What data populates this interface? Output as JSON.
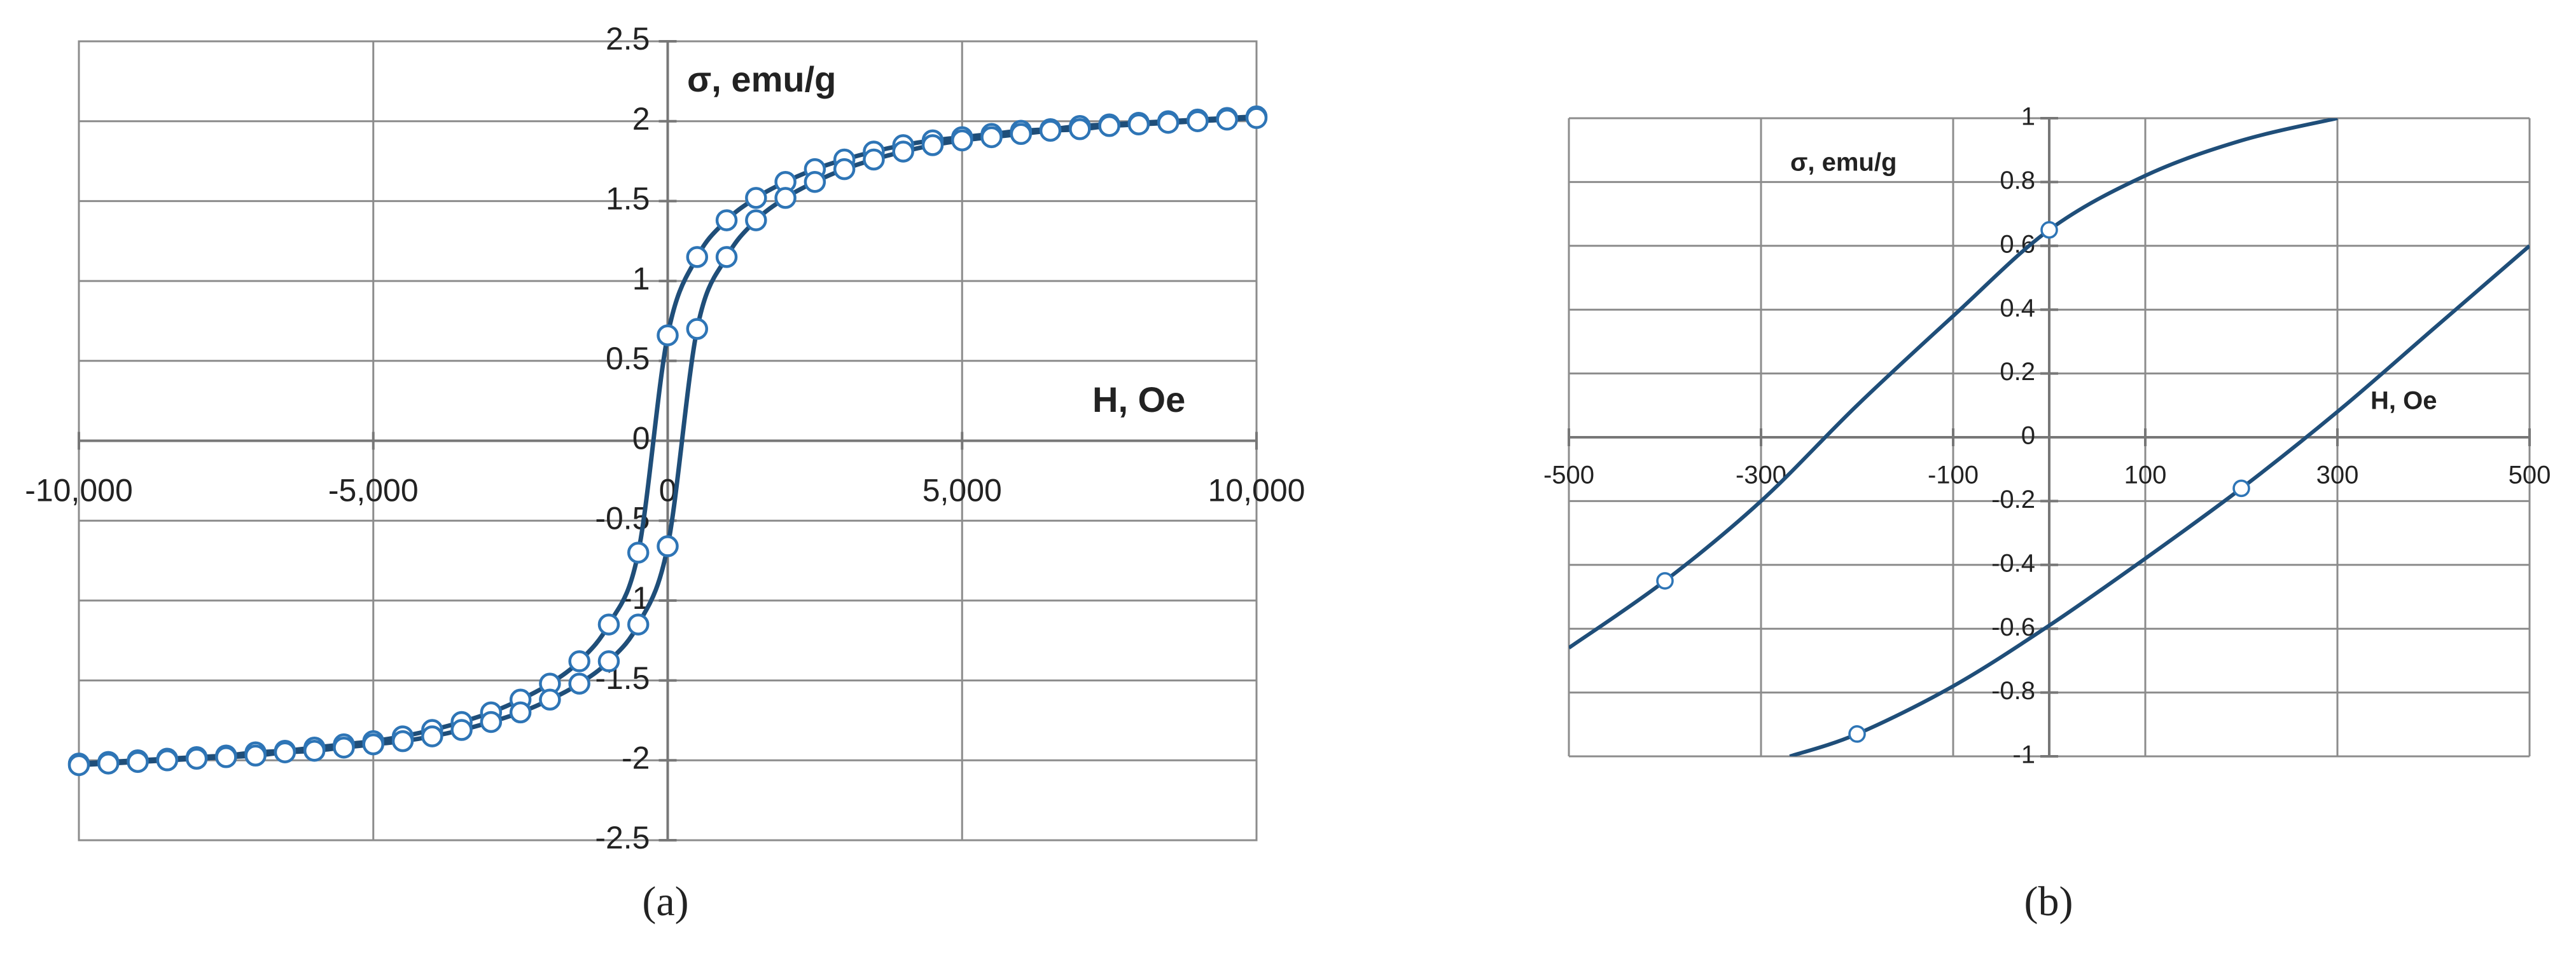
{
  "chart_data": [
    {
      "type": "line",
      "panel_label": "(a)",
      "y_label": "σ, emu/g",
      "x_label": "H, Oe",
      "xlim": [
        -10000,
        10000
      ],
      "xticks": [
        {
          "value": -10000,
          "label": "-10,000"
        },
        {
          "value": -5000,
          "label": "-5,000"
        },
        0,
        {
          "value": 5000,
          "label": "5,000"
        },
        {
          "value": 10000,
          "label": "10,000"
        }
      ],
      "ylim": [
        -2.5,
        2.5
      ],
      "yticks": [
        -2.5,
        -2,
        -1.5,
        -1,
        -0.5,
        0,
        0.5,
        1,
        1.5,
        2,
        2.5
      ],
      "grid": true,
      "x": [
        -10000,
        -9500,
        -9000,
        -8500,
        -8000,
        -7500,
        -7000,
        -6500,
        -6000,
        -5500,
        -5000,
        -4500,
        -4000,
        -3500,
        -3000,
        -2500,
        -2000,
        -1500,
        -1000,
        -500,
        0,
        500,
        1000,
        1500,
        2000,
        2500,
        3000,
        3500,
        4000,
        4500,
        5000,
        5500,
        6000,
        6500,
        7000,
        7500,
        8000,
        8500,
        9000,
        9500,
        10000
      ],
      "series": [
        {
          "color": "#1f4e79",
          "marker": true,
          "line": true,
          "values": [
            -2.02,
            -2.01,
            -2.0,
            -1.99,
            -1.98,
            -1.97,
            -1.95,
            -1.94,
            -1.92,
            -1.9,
            -1.88,
            -1.85,
            -1.81,
            -1.76,
            -1.7,
            -1.62,
            -1.52,
            -1.38,
            -1.15,
            -0.7,
            0.66,
            1.15,
            1.38,
            1.52,
            1.62,
            1.7,
            1.76,
            1.81,
            1.85,
            1.88,
            1.9,
            1.92,
            1.94,
            1.95,
            1.97,
            1.98,
            1.99,
            2.0,
            2.01,
            2.02,
            2.03
          ]
        },
        {
          "color": "#1f4e79",
          "marker": true,
          "line": true,
          "values": [
            -2.03,
            -2.02,
            -2.01,
            -2.0,
            -1.99,
            -1.98,
            -1.97,
            -1.95,
            -1.94,
            -1.92,
            -1.9,
            -1.88,
            -1.85,
            -1.81,
            -1.76,
            -1.7,
            -1.62,
            -1.52,
            -1.38,
            -1.15,
            -0.66,
            0.7,
            1.15,
            1.38,
            1.52,
            1.62,
            1.7,
            1.76,
            1.81,
            1.85,
            1.88,
            1.9,
            1.92,
            1.94,
            1.95,
            1.97,
            1.98,
            1.99,
            2.0,
            2.01,
            2.02
          ]
        }
      ]
    },
    {
      "type": "line",
      "panel_label": "(b)",
      "y_label": "σ, emu/g",
      "x_label": "H, Oe",
      "xlim": [
        -500,
        500
      ],
      "xticks": [
        -500,
        -300,
        -100,
        100,
        300,
        500
      ],
      "ylim": [
        -1,
        1
      ],
      "yticks": [
        -1,
        -0.8,
        -0.6,
        -0.4,
        -0.2,
        0,
        0.2,
        0.4,
        0.6,
        0.8,
        1
      ],
      "grid": true,
      "series": [
        {
          "color": "#1f4e79",
          "marker": false,
          "line": true,
          "x": [
            -500,
            -400,
            -300,
            -200,
            -100,
            0,
            100,
            200,
            300
          ],
          "values": [
            -0.66,
            -0.45,
            -0.2,
            0.1,
            0.38,
            0.65,
            0.82,
            0.93,
            1.0
          ]
        },
        {
          "color": "#1f4e79",
          "marker": false,
          "line": true,
          "x": [
            -270,
            -200,
            -100,
            0,
            100,
            200,
            300,
            400,
            500
          ],
          "values": [
            -1.0,
            -0.93,
            -0.78,
            -0.59,
            -0.38,
            -0.16,
            0.08,
            0.34,
            0.6
          ]
        },
        {
          "color": "#1f4e79",
          "marker": true,
          "line": false,
          "x": [
            -400,
            0
          ],
          "values": [
            -0.45,
            0.65
          ]
        },
        {
          "color": "#1f4e79",
          "marker": true,
          "line": false,
          "x": [
            -200,
            200
          ],
          "values": [
            -0.93,
            -0.16
          ]
        }
      ]
    }
  ]
}
